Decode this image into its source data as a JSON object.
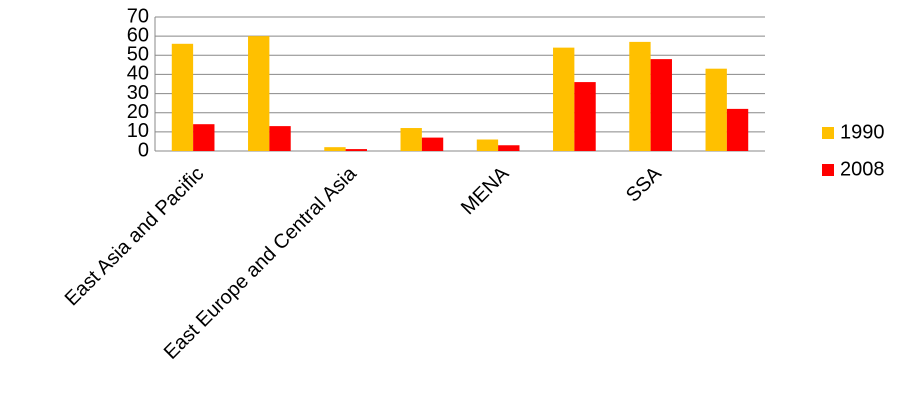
{
  "chart_data": {
    "type": "bar",
    "categories": [
      "East Asia and Pacific",
      null,
      "East Europe and Central Asia",
      null,
      "MENA",
      null,
      "SSA",
      null
    ],
    "series": [
      {
        "name": "1990",
        "color": "#ffc000",
        "values": [
          56,
          60,
          2,
          12,
          6,
          54,
          57,
          43
        ]
      },
      {
        "name": "2008",
        "color": "#ff0000",
        "values": [
          14,
          13,
          1,
          7,
          3,
          36,
          48,
          22
        ]
      }
    ],
    "ylim": [
      0,
      70
    ],
    "yticks": [
      0,
      10,
      20,
      30,
      40,
      50,
      60,
      70
    ],
    "grid": true,
    "legend": "right"
  }
}
